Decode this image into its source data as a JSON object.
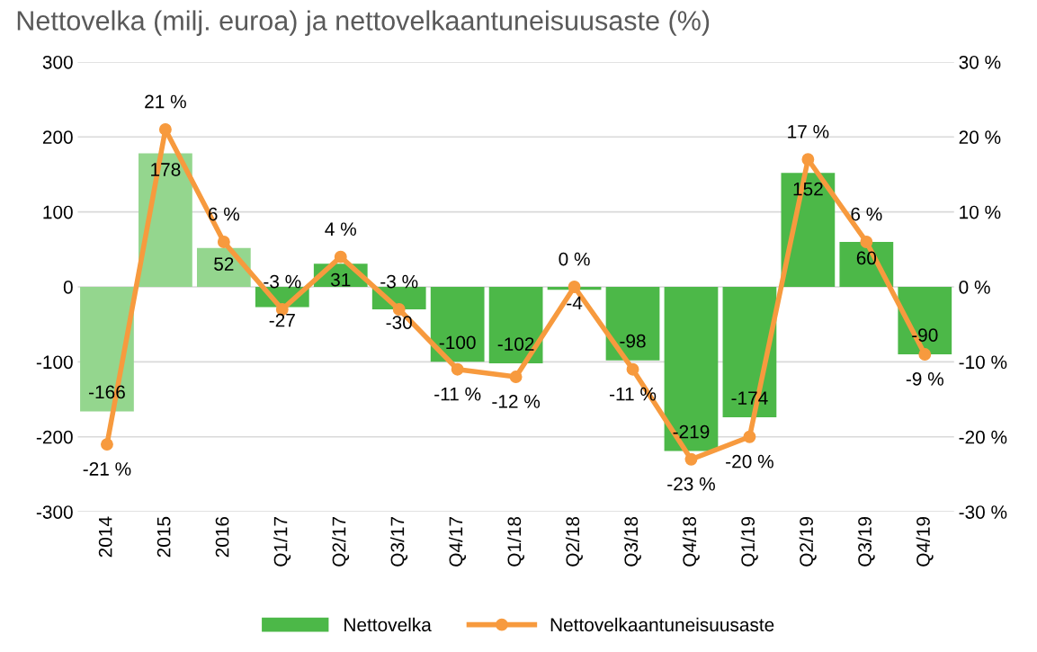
{
  "chart_data": {
    "type": "bar",
    "title": "Nettovelka (milj. euroa) ja nettovelkaantuneisuusaste (%)",
    "categories": [
      "2014",
      "2015",
      "2016",
      "Q1/17",
      "Q2/17",
      "Q3/17",
      "Q4/17",
      "Q1/18",
      "Q2/18",
      "Q3/18",
      "Q4/18",
      "Q1/19",
      "Q2/19",
      "Q3/19",
      "Q4/19"
    ],
    "series": [
      {
        "name": "Nettovelka",
        "color": "#4cb848",
        "colors": [
          "#94d68e",
          "#94d68e",
          "#94d68e",
          "#4cb848",
          "#4cb848",
          "#4cb848",
          "#4cb848",
          "#4cb848",
          "#4cb848",
          "#4cb848",
          "#4cb848",
          "#4cb848",
          "#4cb848",
          "#4cb848",
          "#4cb848"
        ],
        "values": [
          -166,
          178,
          52,
          -27,
          31,
          -30,
          -100,
          -102,
          -4,
          -98,
          -219,
          -174,
          152,
          60,
          -90
        ],
        "value_labels": [
          "-166",
          "178",
          "52",
          "-27",
          "31",
          "-30",
          "-100",
          "-102",
          "-4",
          "-98",
          "-219",
          "-174",
          "152",
          "60",
          "-90"
        ]
      },
      {
        "name": "Nettovelkaantuneisuusaste",
        "type": "line",
        "axis": "y2",
        "color": "#f79a3e",
        "marker": "circle",
        "values": [
          -21,
          21,
          6,
          -3,
          4,
          -3,
          -11,
          -12,
          0,
          -11,
          -23,
          -20,
          17,
          6,
          -9
        ],
        "value_labels": [
          "-21 %",
          "21 %",
          "6 %",
          "-3 %",
          "4 %",
          "-3 %",
          "-11 %",
          "-12 %",
          "0 %",
          "-11 %",
          "-23 %",
          "-20 %",
          "17 %",
          "6 %",
          "-9 %"
        ]
      }
    ],
    "ylim": [
      -300,
      300
    ],
    "yticks": [
      -300,
      -200,
      -100,
      0,
      100,
      200,
      300
    ],
    "y2lim": [
      -30,
      30
    ],
    "y2ticks": [
      {
        "value": -30,
        "label": "-30 %"
      },
      {
        "value": -20,
        "label": "-20 %"
      },
      {
        "value": -10,
        "label": "-10 %"
      },
      {
        "value": 0,
        "label": "0 %"
      },
      {
        "value": 10,
        "label": "10 %"
      },
      {
        "value": 20,
        "label": "20 %"
      },
      {
        "value": 30,
        "label": "30 %"
      }
    ],
    "grid": "y",
    "legend": "bottom"
  }
}
